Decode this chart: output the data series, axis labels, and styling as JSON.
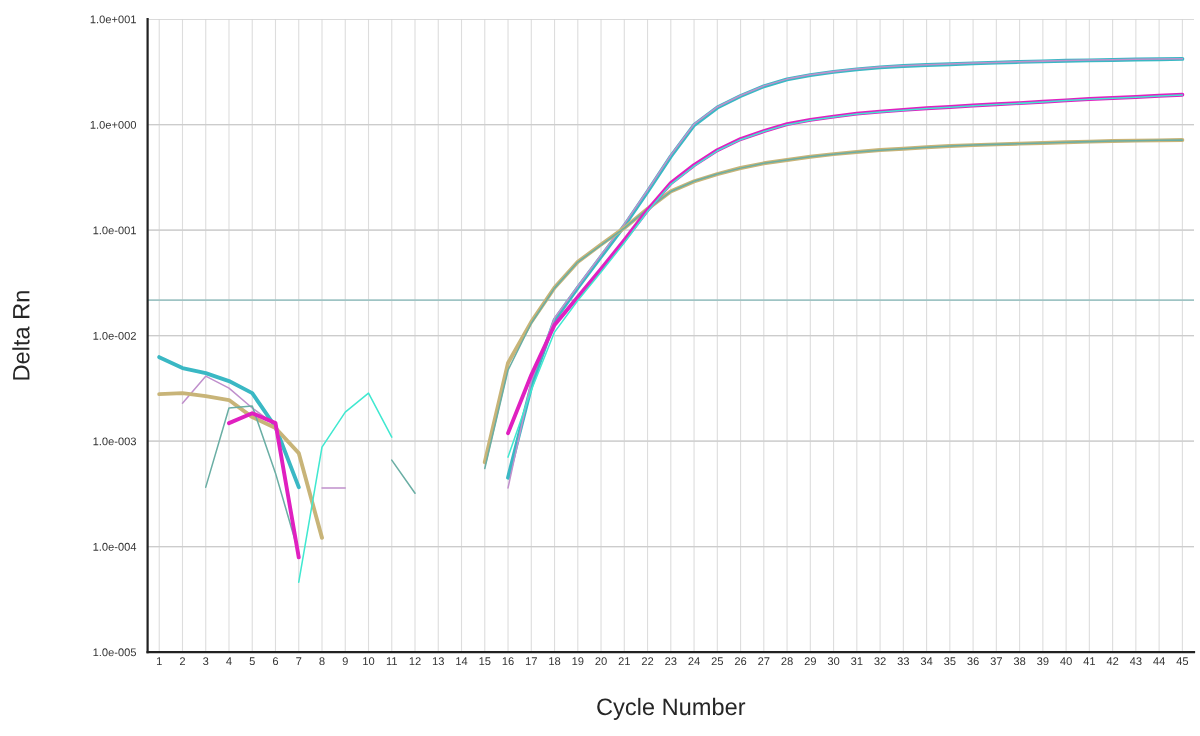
{
  "chart_data": {
    "type": "line",
    "xlabel": "Cycle Number",
    "ylabel": "Delta Rn",
    "log": "y",
    "x": [
      1,
      2,
      3,
      4,
      5,
      6,
      7,
      8,
      9,
      10,
      11,
      12,
      13,
      14,
      15,
      16,
      17,
      18,
      19,
      20,
      21,
      22,
      23,
      24,
      25,
      26,
      27,
      28,
      29,
      30,
      31,
      32,
      33,
      34,
      35,
      36,
      37,
      38,
      39,
      40,
      41,
      42,
      43,
      44,
      45
    ],
    "xlim": [
      0.5,
      45.5
    ],
    "xticks": [
      1,
      2,
      3,
      4,
      5,
      6,
      7,
      8,
      9,
      10,
      11,
      12,
      13,
      14,
      15,
      16,
      17,
      18,
      19,
      20,
      21,
      22,
      23,
      24,
      25,
      26,
      27,
      28,
      29,
      30,
      31,
      32,
      33,
      34,
      35,
      36,
      37,
      38,
      39,
      40,
      41,
      42,
      43,
      44,
      45
    ],
    "ylim": [
      1e-05,
      10
    ],
    "yticks": [
      {
        "value": 1e-05,
        "label": "1.0e-005"
      },
      {
        "value": 0.0001,
        "label": "1.0e-004"
      },
      {
        "value": 0.001,
        "label": "1.0e-003"
      },
      {
        "value": 0.01,
        "label": "1.0e-002"
      },
      {
        "value": 0.1,
        "label": "1.0e-001"
      },
      {
        "value": 1,
        "label": "1.0e+000"
      },
      {
        "value": 10,
        "label": "1.0e+001"
      }
    ],
    "grid": true,
    "marker": "none",
    "line_style": "solid",
    "ref_lines": [
      {
        "axis": "y",
        "value": 0.0217,
        "color": "#9fc4c4"
      }
    ],
    "series": [
      {
        "color": "#3ab8c4",
        "values": [
          0.00625,
          0.00492,
          0.00441,
          0.00371,
          0.00285,
          0.00136,
          0.000366,
          null,
          null,
          null,
          null,
          null,
          null,
          null,
          null,
          0.00045,
          0.0033,
          0.014,
          0.0285,
          0.056,
          0.11,
          0.232,
          0.5,
          0.99,
          1.45,
          1.87,
          2.31,
          2.68,
          2.95,
          3.16,
          3.34,
          3.49,
          3.6,
          3.68,
          3.74,
          3.81,
          3.87,
          3.93,
          3.98,
          4.03,
          4.07,
          4.1,
          4.14,
          4.17,
          4.2
        ]
      },
      {
        "color": "#c090cc",
        "values": [
          null,
          0.00229,
          0.00413,
          0.00318,
          0.00206,
          0.00142,
          null,
          0.00036,
          0.00036,
          null,
          null,
          null,
          null,
          null,
          null,
          0.00036,
          0.0037,
          0.0147,
          0.0294,
          0.058,
          0.114,
          0.239,
          0.514,
          1.01,
          1.47,
          1.89,
          2.33,
          2.7,
          2.97,
          3.18,
          3.36,
          3.51,
          3.62,
          3.7,
          3.76,
          3.83,
          3.89,
          3.95,
          4.0,
          4.05,
          4.09,
          4.12,
          4.16,
          4.19,
          4.22
        ]
      },
      {
        "color": "#c8b478",
        "values": [
          0.00279,
          0.00285,
          0.00267,
          0.00245,
          0.00169,
          0.00133,
          0.00077,
          0.000121,
          null,
          null,
          null,
          null,
          null,
          null,
          0.00063,
          0.0055,
          0.0135,
          0.0285,
          0.05,
          0.073,
          0.105,
          0.159,
          0.233,
          0.29,
          0.34,
          0.388,
          0.43,
          0.462,
          0.496,
          0.526,
          0.55,
          0.574,
          0.59,
          0.61,
          0.627,
          0.64,
          0.65,
          0.66,
          0.67,
          0.68,
          0.69,
          0.7,
          0.705,
          0.71,
          0.714
        ]
      },
      {
        "color": "#6aaea4",
        "values": [
          null,
          null,
          0.000366,
          0.00206,
          0.00215,
          0.000497,
          8.7e-05,
          null,
          null,
          null,
          0.00066,
          0.00032,
          null,
          null,
          0.00055,
          0.0047,
          0.0131,
          0.0282,
          0.0498,
          0.0721,
          0.1045,
          0.158,
          0.232,
          0.291,
          0.34,
          0.387,
          0.43,
          0.461,
          0.495,
          0.525,
          0.55,
          0.573,
          0.59,
          0.61,
          0.626,
          0.64,
          0.65,
          0.66,
          0.67,
          0.68,
          0.69,
          0.7,
          0.705,
          0.71,
          0.713
        ]
      },
      {
        "color": "#e020c0",
        "values": [
          null,
          null,
          null,
          0.00148,
          0.00184,
          0.00148,
          7.9e-05,
          null,
          null,
          null,
          null,
          null,
          null,
          null,
          null,
          0.00119,
          0.00423,
          0.0126,
          0.0232,
          0.0427,
          0.0803,
          0.155,
          0.279,
          0.413,
          0.573,
          0.73,
          0.867,
          1.01,
          1.11,
          1.19,
          1.27,
          1.33,
          1.38,
          1.43,
          1.47,
          1.52,
          1.56,
          1.6,
          1.65,
          1.7,
          1.75,
          1.79,
          1.83,
          1.88,
          1.92
        ]
      },
      {
        "color": "#40e8d0",
        "values": [
          null,
          null,
          null,
          null,
          null,
          null,
          4.6e-05,
          0.000877,
          0.00188,
          0.00285,
          0.00109,
          null,
          null,
          null,
          null,
          0.000705,
          0.00304,
          0.0108,
          0.0215,
          0.04,
          0.076,
          0.15,
          0.272,
          0.405,
          0.565,
          0.72,
          0.86,
          1.0,
          1.1,
          1.18,
          1.26,
          1.32,
          1.37,
          1.42,
          1.46,
          1.51,
          1.55,
          1.59,
          1.64,
          1.69,
          1.74,
          1.78,
          1.82,
          1.87,
          1.91
        ]
      }
    ]
  }
}
